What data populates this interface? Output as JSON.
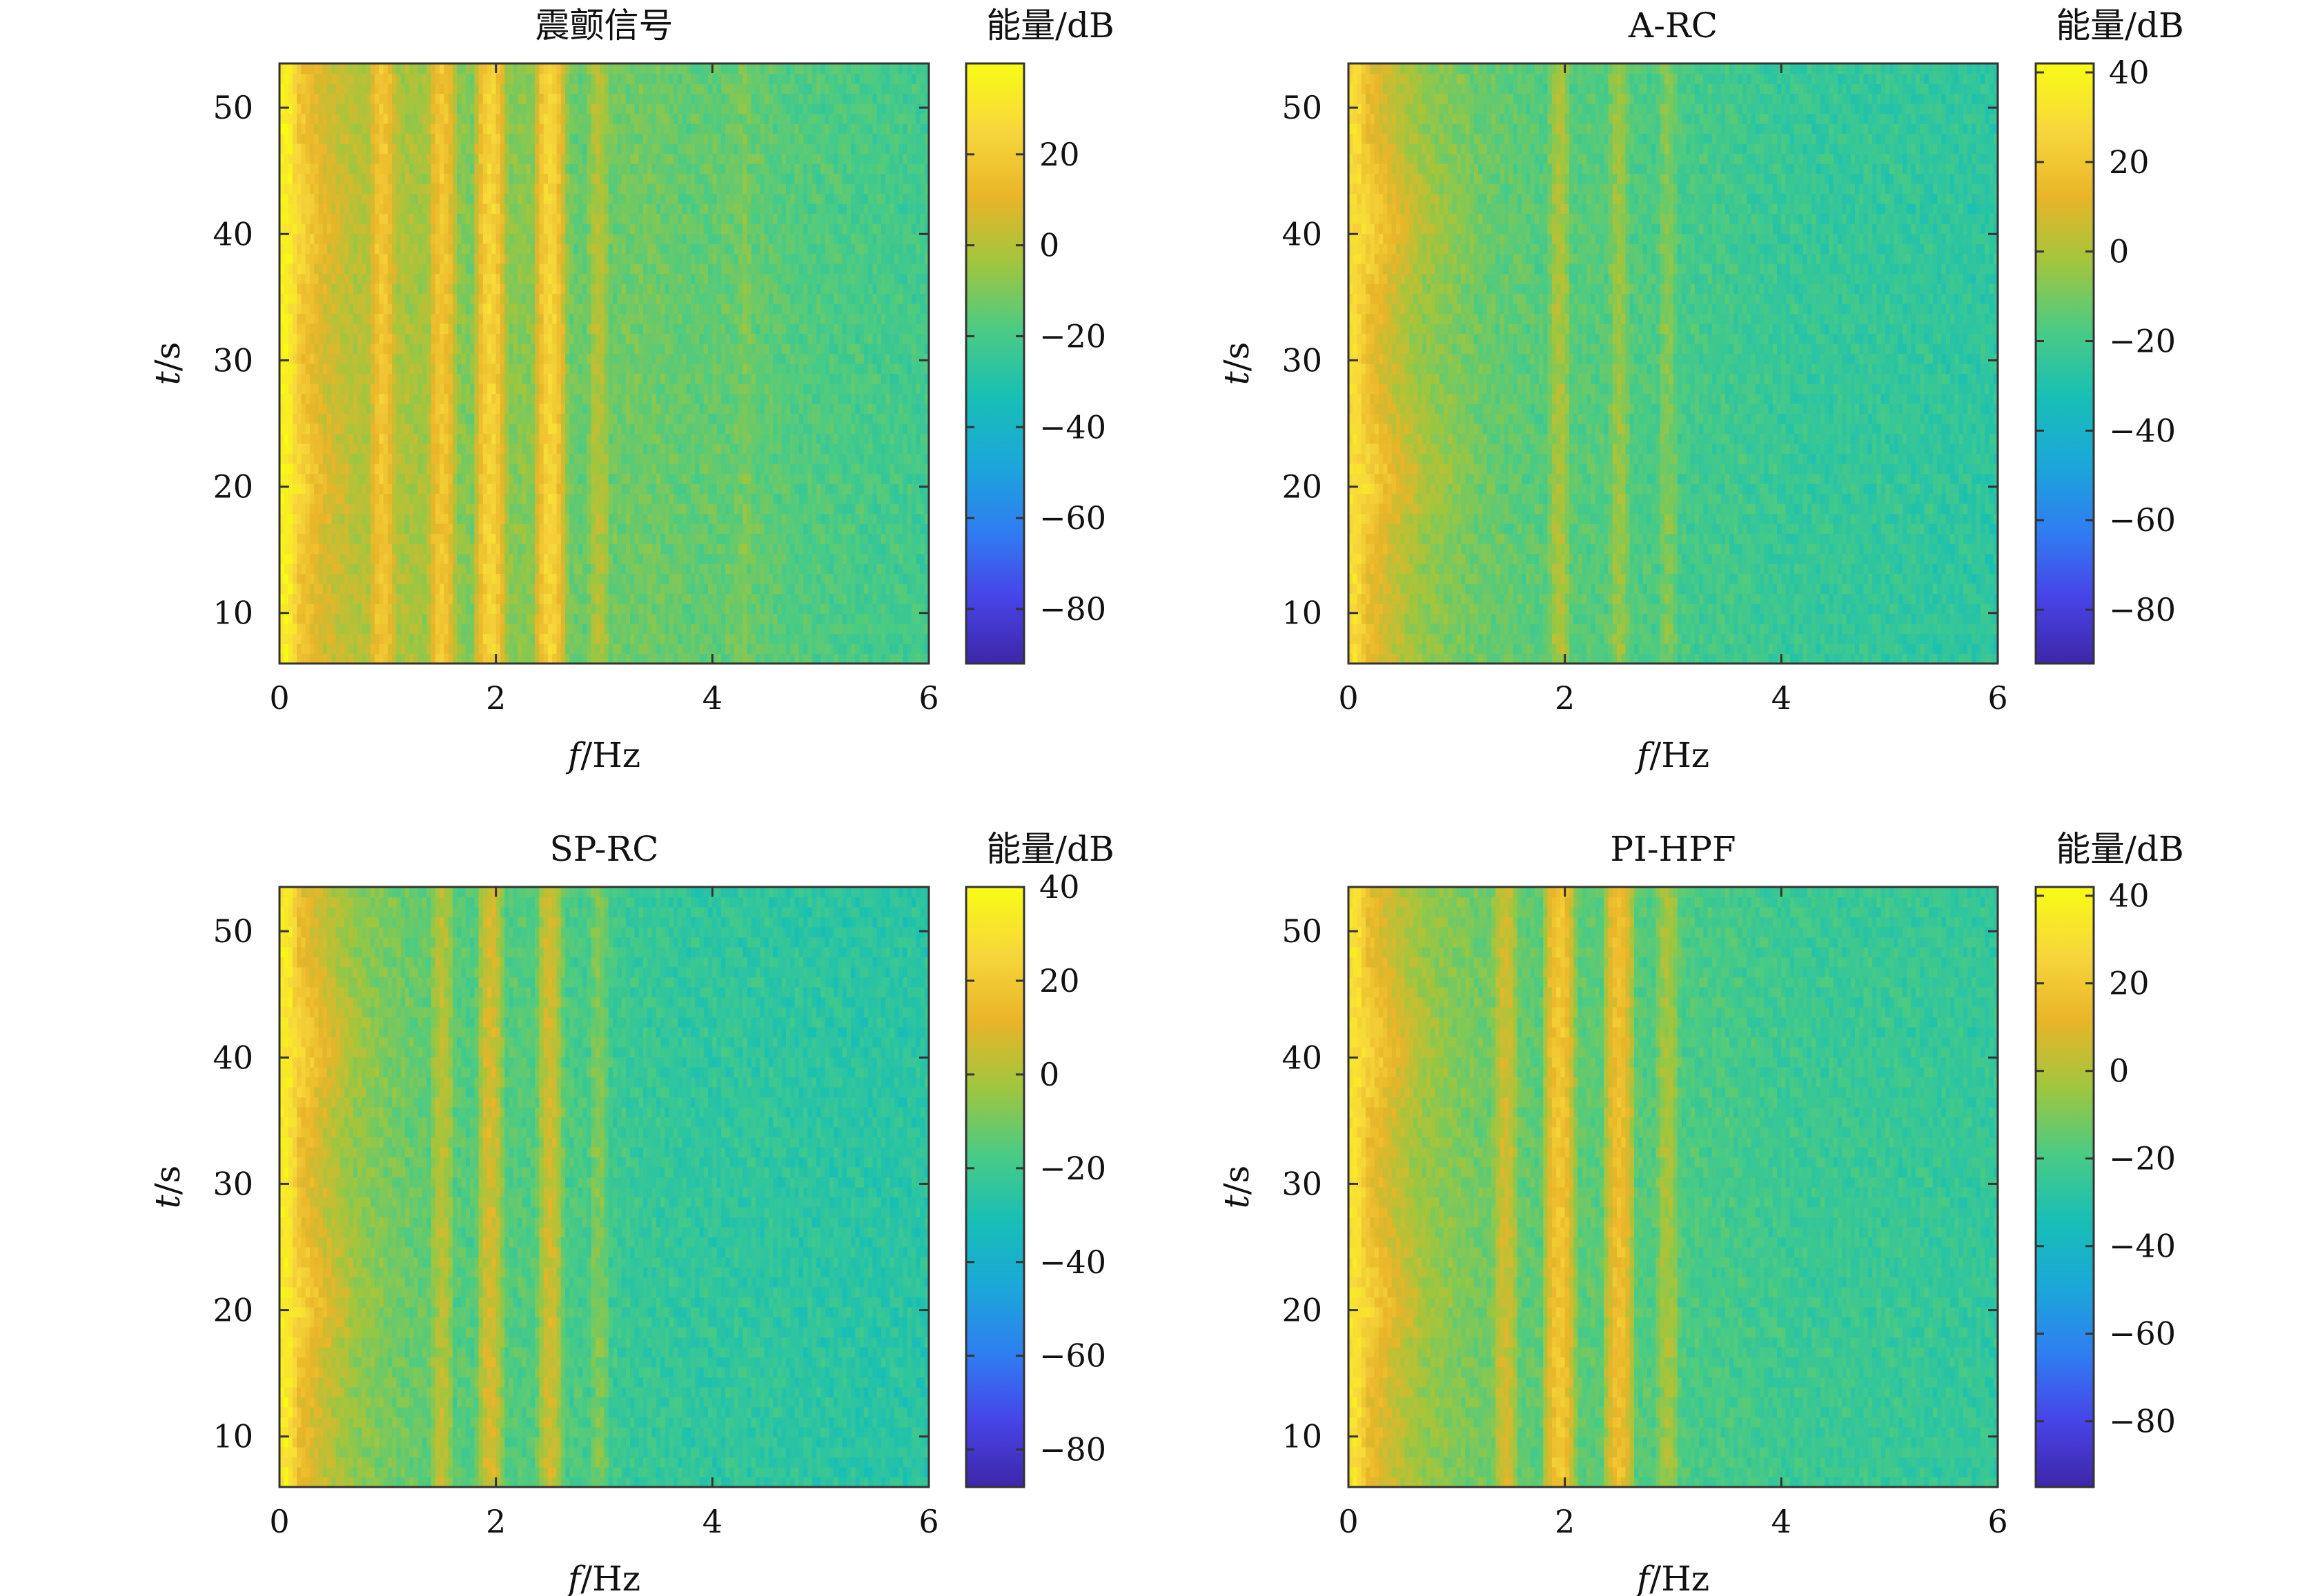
{
  "colormap": [
    "#3e26a8",
    "#4744e8",
    "#2f7ef1",
    "#1ba7d9",
    "#18bfb5",
    "#4bcb83",
    "#a0c63e",
    "#e9b529",
    "#f7d73b",
    "#f9fb15"
  ],
  "chart_data": [
    {
      "type": "heatmap",
      "title": "震颤信号",
      "xlabel_italic": "f",
      "xlabel_unit": "/Hz",
      "ylabel_italic": "t",
      "ylabel_unit": "/s",
      "xlim": [
        0,
        6
      ],
      "ylim": [
        6,
        53.5
      ],
      "xticks": [
        0,
        2,
        4,
        6
      ],
      "yticks": [
        10,
        20,
        30,
        40,
        50
      ],
      "colorbar": {
        "title": "能量/dB",
        "range": [
          -92,
          40
        ],
        "ticks": [
          20,
          0,
          -20,
          -40,
          -60,
          -80
        ]
      },
      "base_level_db": [
        16,
        20,
        6,
        0,
        -2,
        -10,
        -8,
        -14,
        -12,
        -15,
        -14,
        -18,
        -20,
        -22
      ],
      "base_level_freqs_hz": [
        0,
        0.15,
        0.4,
        0.7,
        1.2,
        1.8,
        2.3,
        2.8,
        3.3,
        3.8,
        4.3,
        4.8,
        5.4,
        6
      ],
      "time_bursts": [
        {
          "t_center_s": 21,
          "t_width_s": 5,
          "f_extent_hz": 0.7,
          "gain_db": 12
        },
        {
          "t_center_s": 41,
          "t_width_s": 5,
          "f_extent_hz": 0.7,
          "gain_db": 12
        }
      ],
      "frequency_bands": [
        {
          "f_hz": 0.05,
          "level_db": 36
        },
        {
          "f_hz": 0.95,
          "level_db": 18
        },
        {
          "f_hz": 1.5,
          "level_db": 18
        },
        {
          "f_hz": 1.95,
          "level_db": 24
        },
        {
          "f_hz": 2.5,
          "level_db": 24
        },
        {
          "f_hz": 2.95,
          "level_db": 0
        },
        {
          "f_hz": 4.3,
          "level_db": -10
        }
      ]
    },
    {
      "type": "heatmap",
      "title": "A-RC",
      "xlabel_italic": "f",
      "xlabel_unit": "/Hz",
      "ylabel_italic": "t",
      "ylabel_unit": "/s",
      "xlim": [
        0,
        6
      ],
      "ylim": [
        6,
        53.5
      ],
      "xticks": [
        0,
        2,
        4,
        6
      ],
      "yticks": [
        10,
        20,
        30,
        40,
        50
      ],
      "colorbar": {
        "title": "能量/dB",
        "range": [
          -92,
          42
        ],
        "ticks": [
          40,
          20,
          0,
          -20,
          -40,
          -60,
          -80
        ]
      },
      "base_level_db": [
        14,
        16,
        4,
        -6,
        -12,
        -16,
        -16,
        -18,
        -20,
        -22,
        -24,
        -24,
        -25,
        -26
      ],
      "base_level_freqs_hz": [
        0,
        0.15,
        0.4,
        0.7,
        1.2,
        1.8,
        2.3,
        2.8,
        3.3,
        3.8,
        4.3,
        4.8,
        5.4,
        6
      ],
      "time_bursts": [
        {
          "t_center_s": 21,
          "t_width_s": 5,
          "f_extent_hz": 1.3,
          "gain_db": 14
        },
        {
          "t_center_s": 41,
          "t_width_s": 5,
          "f_extent_hz": 1.3,
          "gain_db": 14
        }
      ],
      "frequency_bands": [
        {
          "f_hz": 0.05,
          "level_db": 30
        },
        {
          "f_hz": 1.95,
          "level_db": 0
        },
        {
          "f_hz": 2.5,
          "level_db": -4
        },
        {
          "f_hz": 2.95,
          "level_db": -8
        }
      ]
    },
    {
      "type": "heatmap",
      "title": "SP-RC",
      "xlabel_italic": "f",
      "xlabel_unit": "/Hz",
      "ylabel_italic": "t",
      "ylabel_unit": "/s",
      "xlim": [
        0,
        6
      ],
      "ylim": [
        6,
        53.5
      ],
      "xticks": [
        0,
        2,
        4,
        6
      ],
      "yticks": [
        10,
        20,
        30,
        40,
        50
      ],
      "colorbar": {
        "title": "能量/dB",
        "range": [
          -88,
          40
        ],
        "ticks": [
          40,
          20,
          0,
          -20,
          -40,
          -60,
          -80
        ]
      },
      "base_level_db": [
        14,
        16,
        4,
        -6,
        -12,
        -16,
        -16,
        -18,
        -22,
        -24,
        -24,
        -25,
        -26,
        -26
      ],
      "base_level_freqs_hz": [
        0,
        0.15,
        0.4,
        0.7,
        1.2,
        1.8,
        2.3,
        2.8,
        3.3,
        3.8,
        4.3,
        4.8,
        5.4,
        6
      ],
      "time_bursts": [
        {
          "t_center_s": 21,
          "t_width_s": 5,
          "f_extent_hz": 1.0,
          "gain_db": 14
        },
        {
          "t_center_s": 41,
          "t_width_s": 5,
          "f_extent_hz": 1.0,
          "gain_db": 14
        }
      ],
      "frequency_bands": [
        {
          "f_hz": 0.05,
          "level_db": 34
        },
        {
          "f_hz": 1.5,
          "level_db": 2
        },
        {
          "f_hz": 1.95,
          "level_db": 8
        },
        {
          "f_hz": 2.5,
          "level_db": 6
        },
        {
          "f_hz": 2.95,
          "level_db": -8
        }
      ]
    },
    {
      "type": "heatmap",
      "title": "PI-HPF",
      "xlabel_italic": "f",
      "xlabel_unit": "/Hz",
      "ylabel_italic": "t",
      "ylabel_unit": "/s",
      "xlim": [
        0,
        6
      ],
      "ylim": [
        6,
        53.5
      ],
      "xticks": [
        0,
        2,
        4,
        6
      ],
      "yticks": [
        10,
        20,
        30,
        40,
        50
      ],
      "colorbar": {
        "title": "能量/dB",
        "range": [
          -95,
          42
        ],
        "ticks": [
          40,
          20,
          0,
          -20,
          -40,
          -60,
          -80
        ]
      },
      "base_level_db": [
        14,
        16,
        4,
        -6,
        -12,
        -16,
        -16,
        -18,
        -20,
        -22,
        -24,
        -24,
        -25,
        -26
      ],
      "base_level_freqs_hz": [
        0,
        0.15,
        0.4,
        0.7,
        1.2,
        1.8,
        2.3,
        2.8,
        3.3,
        3.8,
        4.3,
        4.8,
        5.4,
        6
      ],
      "time_bursts": [
        {
          "t_center_s": 21,
          "t_width_s": 5,
          "f_extent_hz": 1.0,
          "gain_db": 14
        },
        {
          "t_center_s": 41,
          "t_width_s": 5,
          "f_extent_hz": 1.0,
          "gain_db": 14
        }
      ],
      "frequency_bands": [
        {
          "f_hz": 0.05,
          "level_db": 32
        },
        {
          "f_hz": 1.45,
          "level_db": 6
        },
        {
          "f_hz": 1.95,
          "level_db": 20
        },
        {
          "f_hz": 2.5,
          "level_db": 16
        },
        {
          "f_hz": 2.95,
          "level_db": -2
        }
      ]
    }
  ]
}
